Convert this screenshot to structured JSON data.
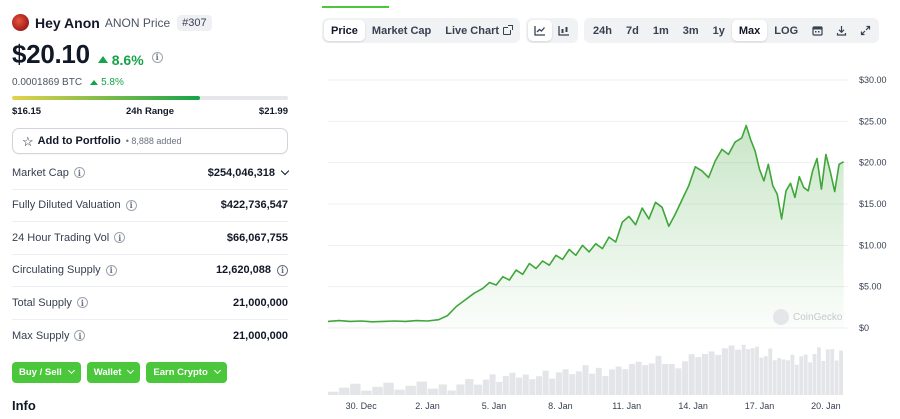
{
  "coin": {
    "name": "Hey Anon",
    "subtitle": "ANON Price",
    "rank": "#307",
    "price": "$20.10",
    "change_24h": "8.6%",
    "btc_price": "0.0001869 BTC",
    "btc_change": "5.8%"
  },
  "range": {
    "low": "$16.15",
    "label": "24h Range",
    "high": "$21.99",
    "fill_fraction": 0.68
  },
  "portfolio": {
    "label": "Add to Portfolio",
    "added": "• 8,888 added"
  },
  "stats": [
    {
      "label": "Market Cap",
      "value": "$254,046,318",
      "chevron": true,
      "value_info": false
    },
    {
      "label": "Fully Diluted Valuation",
      "value": "$422,736,547",
      "chevron": false,
      "value_info": false
    },
    {
      "label": "24 Hour Trading Vol",
      "value": "$66,067,755",
      "chevron": false,
      "value_info": false
    },
    {
      "label": "Circulating Supply",
      "value": "12,620,088",
      "chevron": false,
      "value_info": true
    },
    {
      "label": "Total Supply",
      "value": "21,000,000",
      "chevron": false,
      "value_info": false
    },
    {
      "label": "Max Supply",
      "value": "21,000,000",
      "chevron": false,
      "value_info": false
    }
  ],
  "actions": [
    "Buy / Sell",
    "Wallet",
    "Earn Crypto"
  ],
  "info_heading": "Info",
  "toolbar": {
    "tabs": [
      "Price",
      "Market Cap",
      "Live Chart"
    ],
    "active_tab": "Price",
    "chart_types": [
      "line-chart-icon",
      "candlestick-icon"
    ],
    "ranges": [
      "24h",
      "7d",
      "1m",
      "3m",
      "1y",
      "Max"
    ],
    "active_range": "Max",
    "log_label": "LOG",
    "icons": [
      "calendar-icon",
      "download-icon",
      "expand-icon"
    ]
  },
  "colors": {
    "accent": "#4bc73c",
    "up": "#16a34a",
    "line": "#3fa63a",
    "volume": "#e3e5e8"
  },
  "watermark": "CoinGecko",
  "chart_data": {
    "type": "line",
    "y_ticks": [
      "$30.00",
      "$25.00",
      "$20.00",
      "$15.00",
      "$10.00",
      "$5.00",
      "$0"
    ],
    "ylim": [
      0,
      30
    ],
    "x_ticks": [
      "30. Dec",
      "2. Jan",
      "5. Jan",
      "8. Jan",
      "11. Jan",
      "14. Jan",
      "17. Jan",
      "20. Jan"
    ],
    "x_tick_positions": [
      1.5,
      4.5,
      7.5,
      10.5,
      13.5,
      16.5,
      19.5,
      22.5
    ],
    "xlim": [
      0,
      23.5
    ],
    "series": [
      {
        "x": [
          0,
          0.5,
          1,
          1.5,
          2,
          2.5,
          3,
          3.5,
          4,
          4.5,
          5,
          5.4,
          5.8,
          6.2,
          6.6,
          7,
          7.3,
          7.6,
          7.9,
          8.2,
          8.5,
          8.8,
          9.1,
          9.4,
          9.7,
          10,
          10.3,
          10.6,
          10.9,
          11.2,
          11.5,
          11.8,
          12.1,
          12.4,
          12.7,
          13,
          13.3,
          13.6,
          13.9,
          14.2,
          14.5,
          14.8,
          15.1,
          15.4,
          15.7,
          16,
          16.3,
          16.6,
          16.9,
          17.2,
          17.5,
          17.8,
          18.1,
          18.4,
          18.7,
          18.9,
          19.1,
          19.3,
          19.5,
          19.7,
          19.9,
          20.1,
          20.3,
          20.5,
          20.7,
          20.9,
          21.1,
          21.3,
          21.5,
          21.7,
          21.9,
          22.1,
          22.3,
          22.5,
          22.7,
          22.9,
          23.1,
          23.3
        ],
        "y": [
          0.8,
          0.9,
          0.8,
          0.85,
          0.75,
          0.8,
          0.85,
          0.8,
          0.9,
          0.85,
          1.0,
          1.5,
          2.6,
          3.4,
          4.2,
          4.8,
          5.5,
          5.2,
          6.2,
          5.8,
          7.0,
          6.5,
          7.8,
          7.2,
          8.1,
          7.6,
          8.8,
          8.3,
          9.5,
          8.8,
          10.0,
          9.2,
          10.2,
          9.6,
          11.0,
          10.4,
          12.8,
          13.5,
          12.5,
          14.5,
          13.2,
          15.2,
          14.6,
          12.3,
          13.8,
          15.5,
          17.2,
          19.5,
          19.0,
          18.2,
          20.2,
          21.6,
          21.0,
          22.5,
          23.0,
          24.5,
          22.8,
          21.4,
          19.2,
          17.8,
          19.8,
          17.2,
          16.2,
          13.2,
          16.6,
          17.5,
          15.8,
          18.3,
          17.0,
          16.6,
          19.0,
          20.5,
          16.8,
          21.0,
          18.9,
          16.5,
          19.8,
          20.1
        ]
      }
    ],
    "grid": true
  }
}
